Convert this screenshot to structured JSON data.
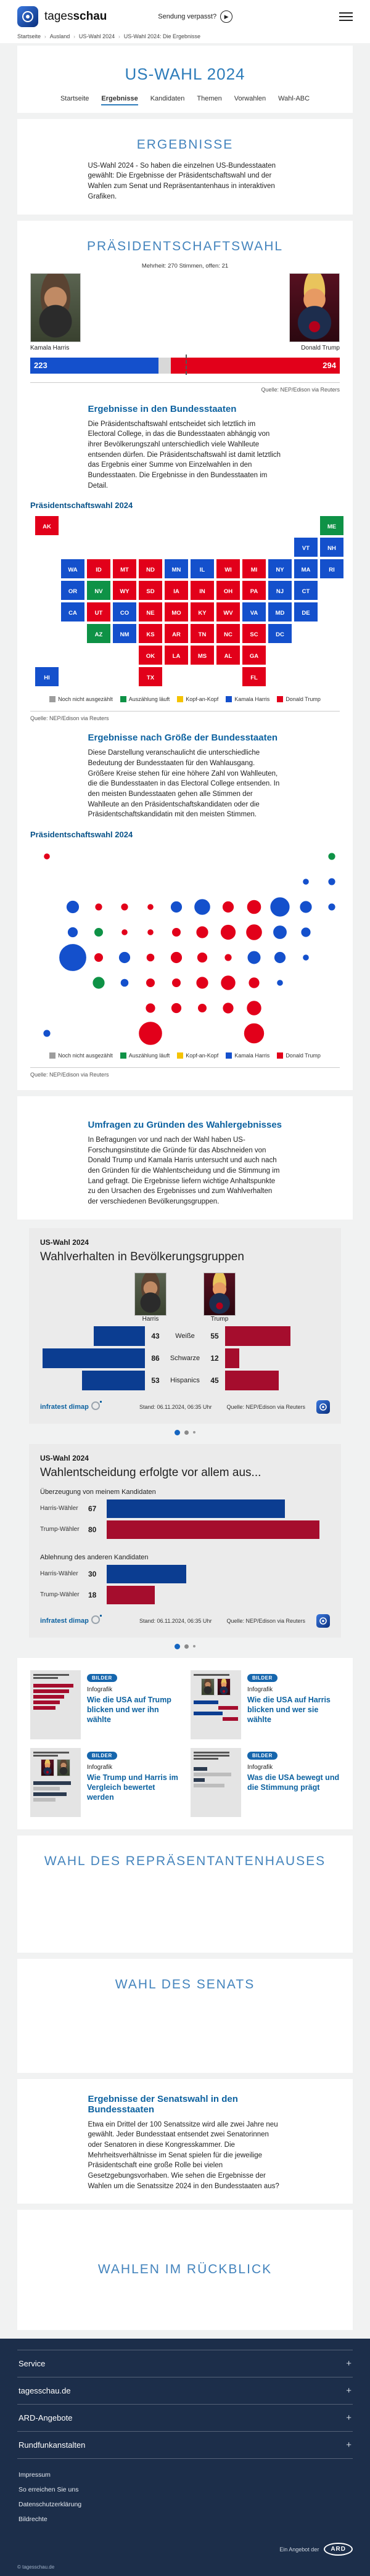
{
  "header": {
    "logo_regular": "tages",
    "logo_bold": "schau",
    "watch_label": "Sendung verpasst?"
  },
  "breadcrumb": {
    "separator": "›",
    "items": [
      "Startseite",
      "Ausland",
      "US-Wahl 2024",
      "US-Wahl 2024: Die Ergebnisse"
    ]
  },
  "hero": {
    "title": "US-WAHL 2024",
    "tabs": [
      {
        "label": "Startseite",
        "active": false
      },
      {
        "label": "Ergebnisse",
        "active": true
      },
      {
        "label": "Kandidaten",
        "active": false
      },
      {
        "label": "Themen",
        "active": false
      },
      {
        "label": "Vorwahlen",
        "active": false
      },
      {
        "label": "Wahl-ABC",
        "active": false
      }
    ]
  },
  "results_intro": {
    "heading": "ERGEBNISSE",
    "body": "US-Wahl 2024 - So haben die einzelnen US-Bundesstaaten gewählt: Die Ergebnisse der Präsidentschaftswahl und der Wahlen zum Senat und Repräsentantenhaus in interaktiven Grafiken."
  },
  "president": {
    "heading": "PRÄSIDENTSCHAFTSWAHL",
    "majority_note": "Mehrheit: 270 Stimmen, offen: 21",
    "harris": {
      "name": "Kamala Harris",
      "votes": "223"
    },
    "trump": {
      "name": "Donald Trump",
      "votes": "294"
    },
    "source": "Quelle: NEP/Edison via Reuters"
  },
  "state_section": {
    "heading": "Ergebnisse in den Bundesstaaten",
    "body": "Die Präsidentschaftswahl entscheidet sich letztlich im Electoral College, in das die Bundesstaaten abhängig von ihrer Bevölkerungszahl unterschiedlich viele Wahlleute entsenden dürfen. Die Präsidentschaftswahl ist damit letztlich das Ergebnis einer Summe von Einzelwahlen in den Bundesstaaten. Die Ergebnisse in den Bundesstaaten im Detail.",
    "chart_label": "Präsidentschaftswahl 2024",
    "source": "Quelle: NEP/Edison via Reuters"
  },
  "size_section": {
    "heading": "Ergebnisse nach Größe der Bundesstaaten",
    "body": "Diese Darstellung veranschaulicht die unterschiedliche Bedeutung der Bundesstaaten für den Wahlausgang. Größere Kreise stehen für eine höhere Zahl von Wahlleuten, die die Bundesstaaten in das Electoral College entsenden. In den meisten Bundesstaaten gehen alle Stimmen der Wahlleute an den Präsidentschaftskandidaten oder die Präsidentschaftskandidatin mit den meisten Stimmen.",
    "chart_label": "Präsidentschaftswahl 2024",
    "source": "Quelle: NEP/Edison via Reuters"
  },
  "legend": {
    "items": [
      {
        "label": "Noch nicht ausgezählt",
        "color": "#9d9d9d"
      },
      {
        "label": "Auszählung läuft",
        "color": "#0e9246"
      },
      {
        "label": "Kopf-an-Kopf",
        "color": "#f5c300"
      },
      {
        "label": "Kamala Harris",
        "color": "#1450cc"
      },
      {
        "label": "Donald Trump",
        "color": "#e2001a"
      }
    ]
  },
  "party_colors": {
    "harris": "#1450cc",
    "trump": "#e2001a",
    "open": "#0e9246"
  },
  "polls_section": {
    "heading": "Umfragen zu Gründen des Wahlergebnisses",
    "body": "In Befragungen vor und nach der Wahl haben US-Forschungsinstitute die Gründe für das Abschneiden von Donald Trump und Kamala Harris untersucht und auch nach den Gründen für die Wahlentscheidung und die Stimmung im Land gefragt. Die Ergebnisse liefern wichtige Anhaltspunkte zu den Ursachen des Ergebnisses und zum Wahlverhalten der verschiedenen Bevölkerungsgruppen."
  },
  "chart_cards": {
    "demographics": {
      "kicker": "US-Wahl 2024",
      "title": "Wahlverhalten in Bevölkerungsgruppen",
      "left_header": "Harris",
      "right_header": "Trump"
    },
    "reasons": {
      "kicker": "US-Wahl 2024",
      "title": "Wahlentscheidung erfolgte vor allem aus..."
    },
    "footer": {
      "brand": "infratest dimap",
      "stand": "Stand: 06.11.2024, 06:35 Uhr",
      "source": "Quelle: NEP/Edison via Reuters"
    }
  },
  "teasers": {
    "badge": "BILDER",
    "kicker": "Infografik",
    "items": [
      {
        "title": "Wie die USA auf Trump blicken und wer ihn wählte"
      },
      {
        "title": "Wie die USA auf Harris blicken und wer sie wählte"
      },
      {
        "title": "Wie Trump und Harris im Vergleich bewertet werden"
      },
      {
        "title": "Was die USA bewegt und die Stimmung prägt"
      }
    ]
  },
  "house_section": {
    "heading": "WAHL DES REPRÄSENTANTENHAUSES"
  },
  "senate_section": {
    "heading": "WAHL DES SENATS"
  },
  "senate_results": {
    "heading": "Ergebnisse der Senatswahl in den Bundesstaaten",
    "body": "Etwa ein Drittel der 100 Senatssitze wird alle zwei Jahre neu gewählt. Jeder Bundesstaat entsendet zwei Senatorinnen oder Senatoren in diese Kongresskammer. Die Mehrheitsverhältnisse im Senat spielen für die jeweilige Präsidentschaft eine große Rolle bei vielen Gesetzgebungsvorhaben. Wie sehen die Ergebnisse der Wahlen um die Senatssitze 2024 in den Bundesstaaten aus?"
  },
  "retro_section": {
    "heading": "WAHLEN IM RÜCKBLICK"
  },
  "footer": {
    "accordion": [
      {
        "label": "Service"
      },
      {
        "label": "tagesschau.de"
      },
      {
        "label": "ARD-Angebote"
      },
      {
        "label": "Rundfunkanstalten"
      }
    ],
    "links": [
      {
        "label": "Impressum"
      },
      {
        "label": "So erreichen Sie uns"
      },
      {
        "label": "Datenschutzerklärung"
      },
      {
        "label": "Bildrechte"
      }
    ],
    "ard_note": "Ein Angebot der",
    "ard_logo": "ARD",
    "copyright": "© tagesschau.de"
  },
  "chart_data": [
    {
      "id": "electoral_college",
      "type": "bar",
      "title": "Präsidentschaftswahl 2024 - Electoral College",
      "categories": [
        "Kamala Harris",
        "offen",
        "Donald Trump"
      ],
      "values": [
        223,
        21,
        294
      ],
      "total": 538,
      "majority": 270,
      "colors": [
        "#1450cc",
        "#d8d8d8",
        "#e2001a"
      ],
      "source": "NEP/Edison via Reuters"
    },
    {
      "id": "state_map",
      "type": "map",
      "title": "Präsidentschaftswahl 2024 - Ergebnisse in den Bundesstaaten",
      "legend": [
        "Noch nicht ausgezählt",
        "Auszählung läuft",
        "Kopf-an-Kopf",
        "Kamala Harris",
        "Donald Trump"
      ],
      "states": [
        {
          "abbr": "AK",
          "ev": 3,
          "winner": "trump",
          "col": 0,
          "row": 0
        },
        {
          "abbr": "ME",
          "ev": 4,
          "winner": "open",
          "col": 11,
          "row": 0
        },
        {
          "abbr": "VT",
          "ev": 3,
          "winner": "harris",
          "col": 10,
          "row": 1
        },
        {
          "abbr": "NH",
          "ev": 4,
          "winner": "harris",
          "col": 11,
          "row": 1
        },
        {
          "abbr": "WA",
          "ev": 12,
          "winner": "harris",
          "col": 1,
          "row": 2
        },
        {
          "abbr": "ID",
          "ev": 4,
          "winner": "trump",
          "col": 2,
          "row": 2
        },
        {
          "abbr": "MT",
          "ev": 4,
          "winner": "trump",
          "col": 3,
          "row": 2
        },
        {
          "abbr": "ND",
          "ev": 3,
          "winner": "trump",
          "col": 4,
          "row": 2
        },
        {
          "abbr": "MN",
          "ev": 10,
          "winner": "harris",
          "col": 5,
          "row": 2
        },
        {
          "abbr": "IL",
          "ev": 19,
          "winner": "harris",
          "col": 6,
          "row": 2
        },
        {
          "abbr": "WI",
          "ev": 10,
          "winner": "trump",
          "col": 7,
          "row": 2
        },
        {
          "abbr": "MI",
          "ev": 15,
          "winner": "trump",
          "col": 8,
          "row": 2
        },
        {
          "abbr": "NY",
          "ev": 28,
          "winner": "harris",
          "col": 9,
          "row": 2
        },
        {
          "abbr": "MA",
          "ev": 11,
          "winner": "harris",
          "col": 10,
          "row": 2
        },
        {
          "abbr": "RI",
          "ev": 4,
          "winner": "harris",
          "col": 11,
          "row": 2
        },
        {
          "abbr": "OR",
          "ev": 8,
          "winner": "harris",
          "col": 1,
          "row": 3
        },
        {
          "abbr": "NV",
          "ev": 6,
          "winner": "open",
          "col": 2,
          "row": 3
        },
        {
          "abbr": "WY",
          "ev": 3,
          "winner": "trump",
          "col": 3,
          "row": 3
        },
        {
          "abbr": "SD",
          "ev": 3,
          "winner": "trump",
          "col": 4,
          "row": 3
        },
        {
          "abbr": "IA",
          "ev": 6,
          "winner": "trump",
          "col": 5,
          "row": 3
        },
        {
          "abbr": "IN",
          "ev": 11,
          "winner": "trump",
          "col": 6,
          "row": 3
        },
        {
          "abbr": "OH",
          "ev": 17,
          "winner": "trump",
          "col": 7,
          "row": 3
        },
        {
          "abbr": "PA",
          "ev": 19,
          "winner": "trump",
          "col": 8,
          "row": 3
        },
        {
          "abbr": "NJ",
          "ev": 14,
          "winner": "harris",
          "col": 9,
          "row": 3
        },
        {
          "abbr": "CT",
          "ev": 7,
          "winner": "harris",
          "col": 10,
          "row": 3
        },
        {
          "abbr": "CA",
          "ev": 54,
          "winner": "harris",
          "col": 1,
          "row": 4
        },
        {
          "abbr": "UT",
          "ev": 6,
          "winner": "trump",
          "col": 2,
          "row": 4
        },
        {
          "abbr": "CO",
          "ev": 10,
          "winner": "harris",
          "col": 3,
          "row": 4
        },
        {
          "abbr": "NE",
          "ev": 5,
          "winner": "trump",
          "col": 4,
          "row": 4
        },
        {
          "abbr": "MO",
          "ev": 10,
          "winner": "trump",
          "col": 5,
          "row": 4
        },
        {
          "abbr": "KY",
          "ev": 8,
          "winner": "trump",
          "col": 6,
          "row": 4
        },
        {
          "abbr": "WV",
          "ev": 4,
          "winner": "trump",
          "col": 7,
          "row": 4
        },
        {
          "abbr": "VA",
          "ev": 13,
          "winner": "harris",
          "col": 8,
          "row": 4
        },
        {
          "abbr": "MD",
          "ev": 10,
          "winner": "harris",
          "col": 9,
          "row": 4
        },
        {
          "abbr": "DE",
          "ev": 3,
          "winner": "harris",
          "col": 10,
          "row": 4
        },
        {
          "abbr": "AZ",
          "ev": 11,
          "winner": "open",
          "col": 2,
          "row": 5
        },
        {
          "abbr": "NM",
          "ev": 5,
          "winner": "harris",
          "col": 3,
          "row": 5
        },
        {
          "abbr": "KS",
          "ev": 6,
          "winner": "trump",
          "col": 4,
          "row": 5
        },
        {
          "abbr": "AR",
          "ev": 6,
          "winner": "trump",
          "col": 5,
          "row": 5
        },
        {
          "abbr": "TN",
          "ev": 11,
          "winner": "trump",
          "col": 6,
          "row": 5
        },
        {
          "abbr": "NC",
          "ev": 16,
          "winner": "trump",
          "col": 7,
          "row": 5
        },
        {
          "abbr": "SC",
          "ev": 9,
          "winner": "trump",
          "col": 8,
          "row": 5
        },
        {
          "abbr": "DC",
          "ev": 3,
          "winner": "harris",
          "col": 9,
          "row": 5
        },
        {
          "abbr": "OK",
          "ev": 7,
          "winner": "trump",
          "col": 4,
          "row": 6
        },
        {
          "abbr": "LA",
          "ev": 8,
          "winner": "trump",
          "col": 5,
          "row": 6
        },
        {
          "abbr": "MS",
          "ev": 6,
          "winner": "trump",
          "col": 6,
          "row": 6
        },
        {
          "abbr": "AL",
          "ev": 9,
          "winner": "trump",
          "col": 7,
          "row": 6
        },
        {
          "abbr": "GA",
          "ev": 16,
          "winner": "trump",
          "col": 8,
          "row": 6
        },
        {
          "abbr": "HI",
          "ev": 4,
          "winner": "harris",
          "col": 0,
          "row": 7
        },
        {
          "abbr": "TX",
          "ev": 40,
          "winner": "trump",
          "col": 4,
          "row": 7
        },
        {
          "abbr": "FL",
          "ev": 30,
          "winner": "trump",
          "col": 8,
          "row": 7
        }
      ]
    },
    {
      "id": "state_bubbles",
      "type": "bubble",
      "title": "Präsidentschaftswahl 2024 - Ergebnisse nach Größe der Bundesstaaten",
      "note": "Kreisgröße proportional zur Zahl der Wahlleute",
      "states_ref": "state_map"
    },
    {
      "id": "demographics",
      "type": "bar",
      "title": "Wahlverhalten in Bevölkerungsgruppen",
      "unit": "Prozent",
      "categories": [
        "Weiße",
        "Schwarze",
        "Hispanics"
      ],
      "series": [
        {
          "name": "Harris",
          "color": "#0b3d91",
          "values": [
            43,
            86,
            53
          ]
        },
        {
          "name": "Trump",
          "color": "#a50d2d",
          "values": [
            55,
            12,
            45
          ]
        }
      ]
    },
    {
      "id": "voting_reasons",
      "type": "bar",
      "title": "Wahlentscheidung erfolgte vor allem aus...",
      "unit": "Prozent",
      "groups": [
        {
          "label": "Überzeugung von meinem Kandidaten",
          "bars": [
            {
              "name": "Harris-Wähler",
              "value": 67,
              "color": "#0b3d91"
            },
            {
              "name": "Trump-Wähler",
              "value": 80,
              "color": "#a50d2d"
            }
          ]
        },
        {
          "label": "Ablehnung des anderen Kandidaten",
          "bars": [
            {
              "name": "Harris-Wähler",
              "value": 30,
              "color": "#0b3d91"
            },
            {
              "name": "Trump-Wähler",
              "value": 18,
              "color": "#a50d2d"
            }
          ]
        }
      ]
    }
  ]
}
